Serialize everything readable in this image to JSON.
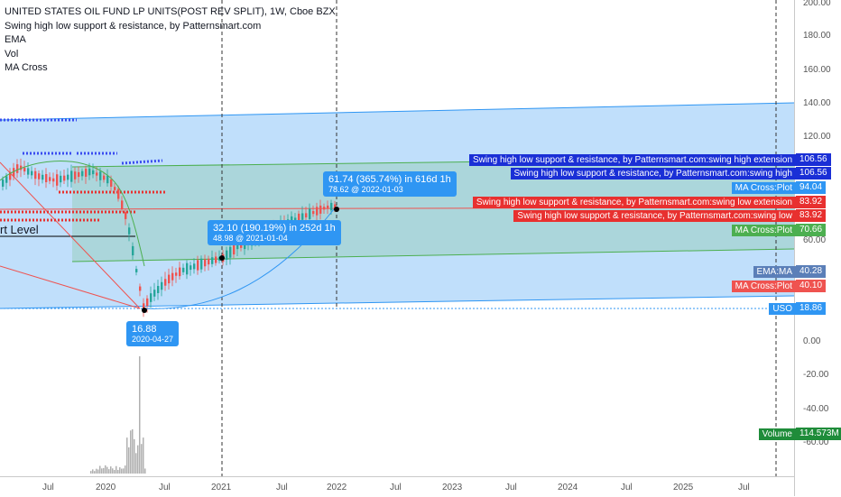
{
  "legend": {
    "title": "UNITED STATES OIL FUND LP UNITS(POST REV SPLIT), 1W, Cboe BZX",
    "lines": [
      "Swing high low support & resistance, by Patternsmart.com",
      "EMA",
      "Vol",
      "MA Cross"
    ]
  },
  "side_text": "rt Level",
  "price_axis": [
    "200.00",
    "180.00",
    "160.00",
    "140.00",
    "120.00",
    "60.00",
    "0.00",
    "-20.00",
    "-40.00",
    "-60.00"
  ],
  "time_axis": [
    "Jul",
    "2020",
    "Jul",
    "2021",
    "Jul",
    "2022",
    "Jul",
    "2023",
    "Jul",
    "2024",
    "Jul",
    "2025",
    "Jul"
  ],
  "right_labels": [
    {
      "text": "Swing high low support & resistance, by Patternsmart.com:swing high extension",
      "value": "106.56",
      "color": "#1a2fd6"
    },
    {
      "text": "Swing high low support & resistance, by Patternsmart.com:swing high",
      "value": "106.56",
      "color": "#1a2fd6"
    },
    {
      "text": "MA Cross:Plot",
      "value": "94.04",
      "color": "#2f96f3"
    },
    {
      "text": "Swing high low support & resistance, by Patternsmart.com:swing low extension",
      "value": "83.92",
      "color": "#e8302f"
    },
    {
      "text": "Swing high low support & resistance, by Patternsmart.com:swing low",
      "value": "83.92",
      "color": "#e8302f"
    },
    {
      "text": "MA Cross:Plot",
      "value": "70.66",
      "color": "#4caf50"
    },
    {
      "text": "EMA:MA",
      "value": "40.28",
      "color": "#5b7fb8"
    },
    {
      "text": "MA Cross:Plot",
      "value": "40.10",
      "color": "#ef5350"
    },
    {
      "text": "USO",
      "value": "18.86",
      "color": "#2f96f3"
    },
    {
      "text": "Volume",
      "value": "114.573M",
      "color": "#1f8c3a"
    }
  ],
  "callouts": {
    "low": {
      "price": "16.88",
      "date": "2020-04-27"
    },
    "mid": {
      "line1": "32.10 (190.19%) in 252d 1h",
      "line2": "48.98 @ 2021-01-04"
    },
    "top": {
      "line1": "61.74 (365.74%) in 616d 1h",
      "line2": "78.62 @ 2022-01-03"
    }
  },
  "colors": {
    "up": "#26a69a",
    "down": "#ef5350",
    "channel_blue": "#2f96f3",
    "channel_green": "#4caf50"
  }
}
